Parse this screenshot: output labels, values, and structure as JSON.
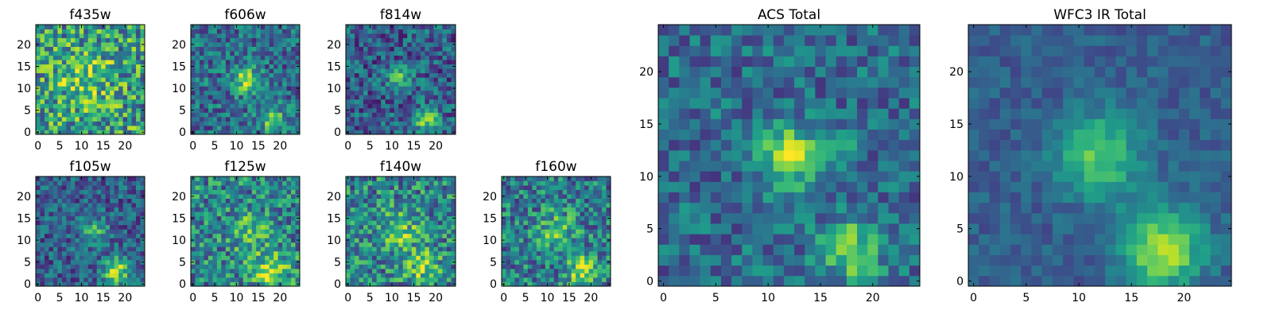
{
  "chart_data": [
    {
      "type": "heatmap",
      "title": "f435w",
      "grid_size": 25,
      "xticks": [
        "0",
        "5",
        "10",
        "15",
        "20"
      ],
      "yticks": [
        "0",
        "5",
        "10",
        "15",
        "20"
      ],
      "sources": [
        {
          "x": 11,
          "y": 12,
          "amp": 0.25,
          "sigma": 4.0
        }
      ],
      "base": 0.55,
      "noise": 0.35,
      "colormap": "viridis"
    },
    {
      "type": "heatmap",
      "title": "f606w",
      "grid_size": 25,
      "xticks": [
        "0",
        "5",
        "10",
        "15",
        "20"
      ],
      "yticks": [
        "0",
        "5",
        "10",
        "15",
        "20"
      ],
      "sources": [
        {
          "x": 12,
          "y": 12,
          "amp": 0.45,
          "sigma": 2.2
        },
        {
          "x": 18,
          "y": 3,
          "amp": 0.45,
          "sigma": 2.0
        }
      ],
      "base": 0.35,
      "noise": 0.25,
      "colormap": "viridis"
    },
    {
      "type": "heatmap",
      "title": "f814w",
      "grid_size": 25,
      "xticks": [
        "0",
        "5",
        "10",
        "15",
        "20"
      ],
      "yticks": [
        "0",
        "5",
        "10",
        "15",
        "20"
      ],
      "sources": [
        {
          "x": 12,
          "y": 12,
          "amp": 0.4,
          "sigma": 1.8
        },
        {
          "x": 18,
          "y": 3,
          "amp": 0.55,
          "sigma": 1.8
        }
      ],
      "base": 0.3,
      "noise": 0.25,
      "colormap": "viridis"
    },
    {
      "type": "heatmap",
      "title": "f105w",
      "grid_size": 25,
      "xticks": [
        "0",
        "5",
        "10",
        "15",
        "20"
      ],
      "yticks": [
        "0",
        "5",
        "10",
        "15",
        "20"
      ],
      "sources": [
        {
          "x": 13,
          "y": 12,
          "amp": 0.35,
          "sigma": 2.2
        },
        {
          "x": 18,
          "y": 3,
          "amp": 0.55,
          "sigma": 2.2
        }
      ],
      "base": 0.3,
      "noise": 0.22,
      "colormap": "viridis"
    },
    {
      "type": "heatmap",
      "title": "f125w",
      "grid_size": 25,
      "xticks": [
        "0",
        "5",
        "10",
        "15",
        "20"
      ],
      "yticks": [
        "0",
        "5",
        "10",
        "15",
        "20"
      ],
      "sources": [
        {
          "x": 13,
          "y": 12,
          "amp": 0.3,
          "sigma": 3.0
        },
        {
          "x": 18,
          "y": 3,
          "amp": 0.35,
          "sigma": 3.0
        }
      ],
      "base": 0.45,
      "noise": 0.3,
      "colormap": "viridis"
    },
    {
      "type": "heatmap",
      "title": "f140w",
      "grid_size": 25,
      "xticks": [
        "0",
        "5",
        "10",
        "15",
        "20"
      ],
      "yticks": [
        "0",
        "5",
        "10",
        "15",
        "20"
      ],
      "sources": [
        {
          "x": 12,
          "y": 12,
          "amp": 0.3,
          "sigma": 3.0
        },
        {
          "x": 17,
          "y": 4,
          "amp": 0.4,
          "sigma": 2.5
        }
      ],
      "base": 0.45,
      "noise": 0.3,
      "colormap": "viridis"
    },
    {
      "type": "heatmap",
      "title": "f160w",
      "grid_size": 25,
      "xticks": [
        "0",
        "5",
        "10",
        "15",
        "20"
      ],
      "yticks": [
        "0",
        "5",
        "10",
        "15",
        "20"
      ],
      "sources": [
        {
          "x": 12,
          "y": 12,
          "amp": 0.3,
          "sigma": 3.0
        },
        {
          "x": 18,
          "y": 3,
          "amp": 0.45,
          "sigma": 2.5
        }
      ],
      "base": 0.42,
      "noise": 0.28,
      "colormap": "viridis"
    },
    {
      "type": "heatmap",
      "title": "ACS Total",
      "grid_size": 25,
      "xticks": [
        "0",
        "5",
        "10",
        "15",
        "20"
      ],
      "yticks": [
        "0",
        "5",
        "10",
        "15",
        "20"
      ],
      "sources": [
        {
          "x": 12,
          "y": 12,
          "amp": 0.55,
          "sigma": 2.0
        },
        {
          "x": 17,
          "y": 13,
          "amp": 0.25,
          "sigma": 1.2
        },
        {
          "x": 18,
          "y": 3,
          "amp": 0.45,
          "sigma": 2.0
        }
      ],
      "base": 0.35,
      "noise": 0.2,
      "colormap": "viridis"
    },
    {
      "type": "heatmap",
      "title": "WFC3 IR Total",
      "grid_size": 25,
      "xticks": [
        "0",
        "5",
        "10",
        "15",
        "20"
      ],
      "yticks": [
        "0",
        "5",
        "10",
        "15",
        "20"
      ],
      "sources": [
        {
          "x": 12,
          "y": 12,
          "amp": 0.45,
          "sigma": 2.8
        },
        {
          "x": 18,
          "y": 3,
          "amp": 0.6,
          "sigma": 2.6
        }
      ],
      "base": 0.3,
      "noise": 0.1,
      "colormap": "viridis"
    }
  ]
}
